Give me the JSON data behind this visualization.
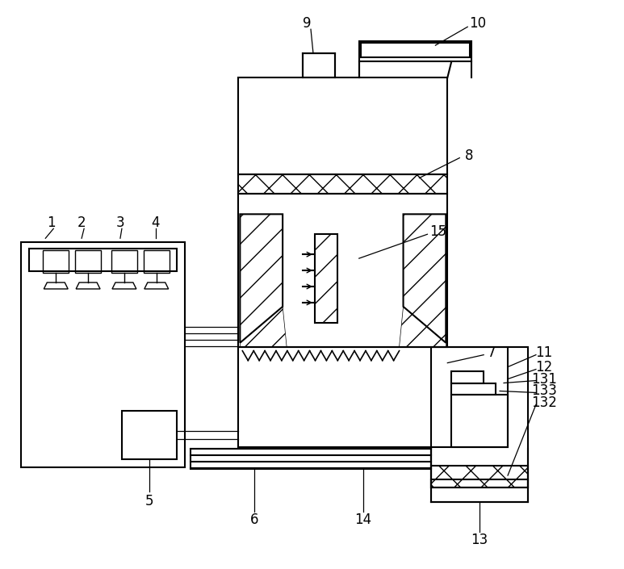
{
  "bg_color": "#ffffff",
  "lc": "#000000",
  "lw": 1.5,
  "tlw": 0.9,
  "figsize": [
    7.73,
    7.05
  ],
  "dpi": 100,
  "label_fs": 12
}
